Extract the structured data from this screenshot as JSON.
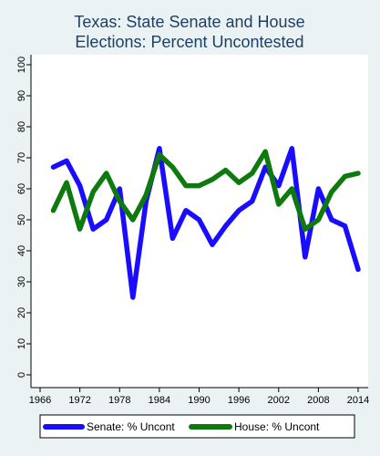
{
  "chart_data": {
    "type": "line",
    "title": [
      "Texas: State Senate and House",
      "Elections: Percent Uncontested"
    ],
    "xlabel": "",
    "ylabel": "",
    "xlim": [
      1966,
      2014
    ],
    "ylim": [
      0,
      100
    ],
    "x_ticks": [
      1966,
      1972,
      1978,
      1984,
      1990,
      1996,
      2002,
      2008,
      2014
    ],
    "y_ticks": [
      0,
      10,
      20,
      30,
      40,
      50,
      60,
      70,
      80,
      90,
      100
    ],
    "grid": false,
    "legend_position": "bottom",
    "series": [
      {
        "name": "Senate: % Uncont",
        "color": "#1a0dff",
        "x": [
          1968,
          1970,
          1972,
          1974,
          1976,
          1978,
          1980,
          1982,
          1984,
          1986,
          1988,
          1990,
          1992,
          1994,
          1996,
          1998,
          2000,
          2002,
          2004,
          2006,
          2008,
          2010,
          2012,
          2014
        ],
        "y": [
          67,
          69,
          61,
          47,
          50,
          60,
          25,
          56,
          73,
          44,
          53,
          50,
          42,
          48,
          53,
          56,
          67,
          61,
          73,
          38,
          60,
          50,
          48,
          34
        ]
      },
      {
        "name": "House: % Uncont",
        "color": "#0e7a0e",
        "x": [
          1968,
          1970,
          1972,
          1974,
          1976,
          1978,
          1980,
          1982,
          1984,
          1986,
          1988,
          1990,
          1992,
          1994,
          1996,
          1998,
          2000,
          2002,
          2004,
          2006,
          2008,
          2010,
          2012,
          2014
        ],
        "y": [
          53,
          62,
          47,
          59,
          65,
          56,
          50,
          58,
          71,
          67,
          61,
          61,
          63,
          66,
          62,
          65,
          72,
          55,
          60,
          47,
          50,
          59,
          64,
          65
        ]
      }
    ]
  }
}
